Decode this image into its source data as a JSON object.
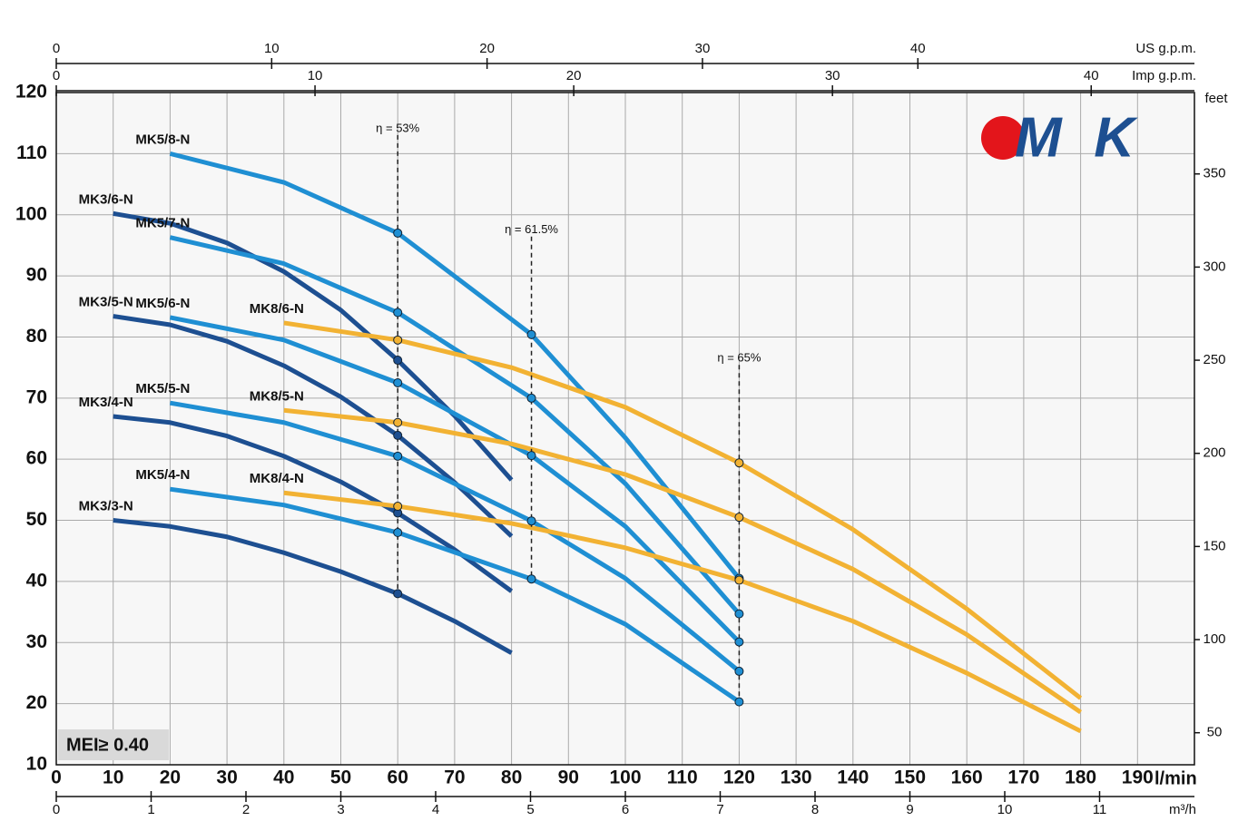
{
  "chart_data": {
    "type": "line",
    "xlabel": "l/min",
    "xlim": [
      0,
      200
    ],
    "xticks": [
      0,
      10,
      20,
      30,
      40,
      50,
      60,
      70,
      80,
      90,
      100,
      110,
      120,
      130,
      140,
      150,
      160,
      170,
      180,
      190
    ],
    "ylim": [
      10,
      120
    ],
    "yticks": [
      10,
      20,
      30,
      40,
      50,
      60,
      70,
      80,
      90,
      100,
      110,
      120
    ],
    "y2label": "feet",
    "y2lim": [
      32.8,
      393.7
    ],
    "y2ticks": [
      50,
      100,
      150,
      200,
      250,
      300,
      350
    ],
    "extra_x_axes": [
      {
        "label": "US g.p.m.",
        "lim": [
          0,
          52.84
        ],
        "ticks": [
          0,
          10,
          20,
          30,
          40
        ],
        "side": "top"
      },
      {
        "label": "Imp g.p.m.",
        "lim": [
          0,
          43.99
        ],
        "ticks": [
          0,
          10,
          20,
          30,
          40
        ],
        "side": "top"
      },
      {
        "label": "m³/h",
        "lim": [
          0,
          12
        ],
        "ticks": [
          0,
          1,
          2,
          3,
          4,
          5,
          6,
          7,
          8,
          9,
          10,
          11
        ],
        "side": "bottom"
      }
    ],
    "grid": true,
    "series": [
      {
        "name": "MK3/3-N",
        "color": "#1d4f91",
        "x": [
          10,
          20,
          30,
          40,
          50,
          60,
          70,
          80
        ],
        "values": [
          50,
          49,
          47.3,
          44.7,
          41.6,
          38,
          33.5,
          28.3
        ]
      },
      {
        "name": "MK3/4-N",
        "color": "#1d4f91",
        "x": [
          10,
          20,
          30,
          40,
          50,
          60,
          70,
          80
        ],
        "values": [
          67,
          66,
          63.8,
          60.5,
          56.3,
          51.2,
          45.2,
          38.4
        ]
      },
      {
        "name": "MK3/5-N",
        "color": "#1d4f91",
        "x": [
          10,
          20,
          30,
          40,
          50,
          60,
          70,
          80
        ],
        "values": [
          83.4,
          82,
          79.3,
          75.3,
          70.2,
          63.9,
          56.2,
          47.4
        ]
      },
      {
        "name": "MK3/6-N",
        "color": "#1d4f91",
        "x": [
          10,
          20,
          30,
          40,
          50,
          60,
          70,
          80
        ],
        "values": [
          100.2,
          98.6,
          95.4,
          90.7,
          84.4,
          76.2,
          67.1,
          56.6
        ]
      },
      {
        "name": "MK5/4-N",
        "color": "#1f8fd3",
        "x": [
          20,
          40,
          60,
          83.5,
          100,
          120
        ],
        "values": [
          55.1,
          52.5,
          48,
          40.4,
          33,
          20.3
        ]
      },
      {
        "name": "MK5/5-N",
        "color": "#1f8fd3",
        "x": [
          20,
          40,
          60,
          83.5,
          100,
          120
        ],
        "values": [
          69.2,
          66,
          60.5,
          49.9,
          40.5,
          25.3
        ]
      },
      {
        "name": "MK5/6-N",
        "color": "#1f8fd3",
        "x": [
          20,
          40,
          60,
          83.5,
          100,
          120
        ],
        "values": [
          83.2,
          79.5,
          72.5,
          60.6,
          49,
          30.1
        ]
      },
      {
        "name": "MK5/7-N",
        "color": "#1f8fd3",
        "x": [
          20,
          40,
          60,
          83.5,
          100,
          120
        ],
        "values": [
          96.3,
          92,
          84,
          70,
          56,
          34.7
        ]
      },
      {
        "name": "MK5/8-N",
        "color": "#1f8fd3",
        "x": [
          20,
          40,
          60,
          83.5,
          100,
          120
        ],
        "values": [
          110,
          105.3,
          97,
          80.4,
          63.5,
          40.5
        ]
      },
      {
        "name": "MK8/4-N",
        "color": "#f2b233",
        "x": [
          40,
          60,
          80,
          100,
          120,
          140,
          160,
          180
        ],
        "values": [
          54.5,
          52.3,
          49.5,
          45.5,
          40.2,
          33.5,
          25,
          15.5
        ]
      },
      {
        "name": "MK8/5-N",
        "color": "#f2b233",
        "x": [
          40,
          60,
          80,
          100,
          120,
          140,
          160,
          180
        ],
        "values": [
          68,
          66,
          62.5,
          57.5,
          50.5,
          42,
          31.3,
          18.6
        ]
      },
      {
        "name": "MK8/6-N",
        "color": "#f2b233",
        "x": [
          40,
          60,
          80,
          100,
          120,
          140,
          160,
          180
        ],
        "values": [
          82.3,
          79.5,
          75,
          68.5,
          59.4,
          48.5,
          35.5,
          20.9
        ]
      }
    ],
    "efficiency": [
      {
        "label": "η = 53%",
        "x": 60
      },
      {
        "label": "η = 61.5%",
        "x": 83.5
      },
      {
        "label": "η = 65%",
        "x": 120
      }
    ],
    "badge": "MEI≥ 0.40",
    "logo": "MK"
  }
}
